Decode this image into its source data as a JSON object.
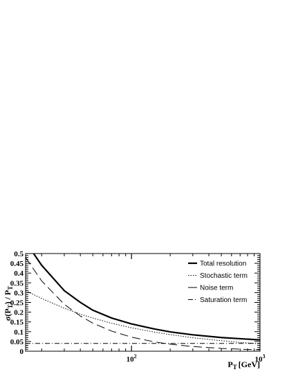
{
  "chart_data": {
    "type": "line",
    "xscale": "log",
    "xlim": [
      15,
      1000
    ],
    "ylim": [
      0,
      0.5
    ],
    "grid": false,
    "legend_position": "top-right",
    "xlabel": "P",
    "xlabel_sub": "T",
    "xlabel_unit": "[GeV]",
    "ylabel_parts": [
      "σ(P",
      "T",
      ") / P",
      "T"
    ],
    "y_ticks": [
      0,
      0.05,
      0.1,
      0.15,
      0.2,
      0.25,
      0.3,
      0.35,
      0.4,
      0.45,
      0.5
    ],
    "y_tick_labels": [
      "0",
      "0.05",
      "0.1",
      "0.15",
      "0.2",
      "0.25",
      "0.3",
      "0.35",
      "0.4",
      "0.45",
      "0.5"
    ],
    "x_major_ticks": [
      100,
      1000
    ],
    "x_tick_labels": [
      {
        "base": "10",
        "exp": "2"
      },
      {
        "base": "10",
        "exp": "3"
      }
    ],
    "series": [
      {
        "name": "Total resolution",
        "style": "solid-thick",
        "x": [
          15,
          20,
          30,
          40,
          50,
          70,
          100,
          150,
          200,
          300,
          500,
          700,
          1000
        ],
        "y": [
          0.56,
          0.44,
          0.31,
          0.25,
          0.21,
          0.17,
          0.14,
          0.114,
          0.099,
          0.084,
          0.07,
          0.064,
          0.058
        ]
      },
      {
        "name": "Stochastic term",
        "style": "dotted",
        "x": [
          15,
          20,
          30,
          40,
          50,
          70,
          100,
          150,
          200,
          300,
          500,
          700,
          1000
        ],
        "y": [
          0.31,
          0.27,
          0.22,
          0.19,
          0.17,
          0.143,
          0.12,
          0.098,
          0.085,
          0.069,
          0.054,
          0.045,
          0.038
        ]
      },
      {
        "name": "Noise term",
        "style": "dashed",
        "x": [
          15,
          20,
          30,
          40,
          50,
          70,
          100,
          150,
          200,
          300,
          500,
          700,
          1000
        ],
        "y": [
          0.48,
          0.36,
          0.24,
          0.18,
          0.144,
          0.103,
          0.072,
          0.048,
          0.036,
          0.024,
          0.0144,
          0.0103,
          0.0072
        ]
      },
      {
        "name": "Saturation term",
        "style": "dashdot",
        "x": [
          15,
          1000
        ],
        "y": [
          0.04,
          0.04
        ]
      }
    ]
  }
}
